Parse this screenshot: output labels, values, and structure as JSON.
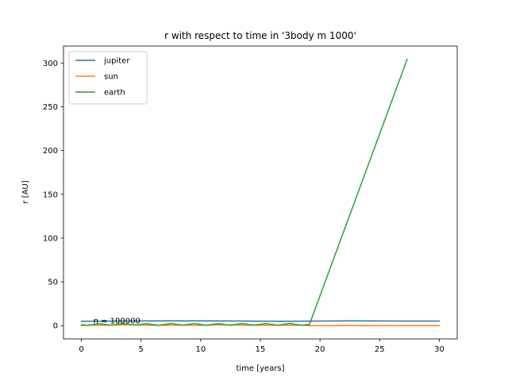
{
  "chart_data": {
    "type": "line",
    "title": "r with respect to time in '3body m 1000'",
    "xlabel": "time [years]",
    "ylabel": "r [AU]",
    "xlim": [
      -1.5,
      31.5
    ],
    "ylim": [
      -15.2,
      319.3
    ],
    "xticks": [
      0,
      5,
      10,
      15,
      20,
      25,
      30
    ],
    "yticks": [
      0,
      50,
      100,
      150,
      200,
      250,
      300
    ],
    "grid": false,
    "legend_position": "upper-left",
    "annotation": "n = 100000",
    "annotation_at": [
      1.0,
      5.0
    ],
    "series": [
      {
        "name": "jupiter",
        "color": "#1f77b4",
        "x": [
          0,
          2.5,
          5,
          7.5,
          10,
          12.5,
          15,
          17.5,
          20,
          22.5,
          25,
          27.5,
          30
        ],
        "y": [
          5.0,
          5.2,
          5.3,
          5.4,
          5.45,
          5.3,
          5.1,
          5.0,
          5.2,
          5.4,
          5.35,
          5.2,
          5.2
        ]
      },
      {
        "name": "sun",
        "color": "#ff7f0e",
        "x": [
          0,
          2,
          4,
          6,
          8,
          10,
          12,
          14,
          16,
          18,
          19.2,
          20,
          25,
          30
        ],
        "y": [
          0.2,
          0.6,
          1.0,
          0.3,
          0.6,
          0.3,
          0.9,
          0.4,
          0.3,
          0.6,
          0.0,
          0.0,
          0.0,
          0.0
        ]
      },
      {
        "name": "earth",
        "color": "#2ca02c",
        "x": [
          0,
          0.5,
          1,
          1.5,
          2,
          2.5,
          3,
          3.5,
          4,
          4.5,
          5,
          5.5,
          6,
          6.5,
          7,
          7.5,
          8,
          8.5,
          9,
          9.5,
          10,
          10.5,
          11,
          11.5,
          12,
          12.5,
          13,
          13.5,
          14,
          14.5,
          15,
          15.5,
          16,
          16.5,
          17,
          17.5,
          18,
          18.5,
          19,
          19.1,
          27.3
        ],
        "y": [
          1.0,
          0.4,
          1.2,
          2.2,
          1.3,
          0.4,
          1.6,
          2.4,
          1.4,
          0.5,
          1.5,
          2.3,
          1.2,
          0.4,
          1.5,
          2.5,
          1.4,
          0.5,
          1.6,
          2.4,
          1.3,
          0.4,
          1.5,
          2.3,
          1.2,
          0.4,
          1.6,
          2.5,
          1.3,
          0.5,
          1.5,
          2.4,
          1.4,
          0.4,
          1.6,
          2.5,
          1.3,
          0.5,
          1.4,
          0.8,
          304.0
        ]
      }
    ]
  }
}
